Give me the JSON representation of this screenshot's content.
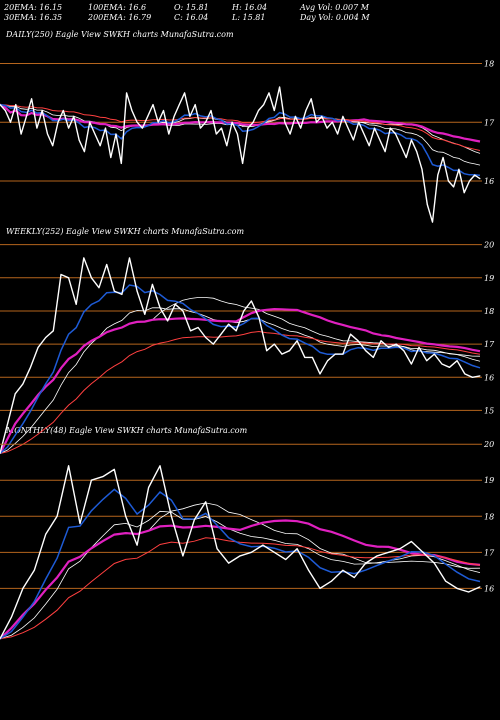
{
  "header": {
    "ema20": "20EMA: 16.15",
    "ema30": "30EMA: 16.35",
    "ema100": "100EMA: 16.6",
    "ema200": "200EMA: 16.79",
    "open": "O: 15.81",
    "close": "C: 16.04",
    "high": "H: 16.04",
    "low": "L: 15.81",
    "avg_vol": "Avg Vol: 0.007 M",
    "day_vol": "Day Vol: 0.004  M"
  },
  "colors": {
    "background": "#000000",
    "price": "#ffffff",
    "gridline": "#b5651d",
    "ema_short": "#1e5bd6",
    "ema_long": "#e020c0",
    "ema_mid": "#ff4040",
    "ema_aux": "#ffffff"
  },
  "chart_data": [
    {
      "type": "line",
      "title": "DAILY(250) Eagle  View  SWKH charts MunafaSutra.com",
      "yticks": [
        "18",
        "17",
        "16"
      ],
      "ylim": [
        15.2,
        18.4
      ],
      "series": [
        {
          "values": [
            17.3,
            17.2,
            17.0,
            17.3,
            16.8,
            17.1,
            17.4,
            16.9,
            17.2,
            16.8,
            16.6,
            17.0,
            17.2,
            16.9,
            17.1,
            16.7,
            16.5,
            17.0,
            16.8,
            16.6,
            16.9,
            16.4,
            16.8,
            16.3,
            17.5,
            17.2,
            17.0,
            16.9,
            17.1,
            17.3,
            17.0,
            17.2,
            16.8,
            17.1,
            17.3,
            17.5,
            17.1,
            17.3,
            16.9,
            17.0,
            17.2,
            16.8,
            16.9,
            16.6,
            17.0,
            16.8,
            16.3,
            16.9,
            17.0,
            17.2,
            17.3,
            17.5,
            17.2,
            17.6,
            17.0,
            16.8,
            17.1,
            16.9,
            17.2,
            17.4,
            17.0,
            17.1,
            16.9,
            17.0,
            16.8,
            17.1,
            16.9,
            16.7,
            17.0,
            16.8,
            16.6,
            16.9,
            16.7,
            16.5,
            16.9,
            16.8,
            16.6,
            16.4,
            16.7,
            16.5,
            16.2,
            15.6,
            15.3,
            16.1,
            16.4,
            16.0,
            15.9,
            16.2,
            15.8,
            16.0,
            16.1,
            16.04
          ]
        }
      ]
    },
    {
      "type": "line",
      "title": "WEEKLY(252) Eagle  View  SWKH charts MunafaSutra.com",
      "yticks": [
        "20",
        "19",
        "18",
        "17",
        "16",
        "15"
      ],
      "ylim": [
        14.5,
        20.2
      ],
      "series": [
        {
          "values": [
            13.7,
            14.6,
            15.5,
            15.8,
            16.3,
            16.9,
            17.2,
            17.4,
            19.1,
            19.0,
            18.2,
            19.6,
            19.0,
            18.7,
            19.4,
            18.6,
            18.5,
            19.6,
            18.6,
            17.9,
            18.8,
            18.1,
            17.7,
            18.2,
            18.0,
            17.4,
            17.5,
            17.2,
            17.0,
            17.3,
            17.6,
            17.4,
            18.0,
            18.3,
            17.8,
            16.8,
            17.0,
            16.7,
            16.8,
            17.1,
            16.6,
            16.6,
            16.1,
            16.5,
            16.7,
            16.7,
            17.3,
            17.1,
            16.8,
            16.6,
            17.1,
            16.9,
            17.0,
            16.8,
            16.4,
            16.9,
            16.5,
            16.7,
            16.4,
            16.3,
            16.5,
            16.1,
            16.0,
            16.04
          ]
        }
      ]
    },
    {
      "type": "line",
      "title": "MONTHLY(48) Eagle  View  SWKH charts MunafaSutra.com",
      "yticks": [
        "20",
        "19",
        "18",
        "17",
        "16"
      ],
      "ylim": [
        14.9,
        20.2
      ],
      "series": [
        {
          "values": [
            14.6,
            15.2,
            16.0,
            16.5,
            17.5,
            18.0,
            19.4,
            17.8,
            19.0,
            19.1,
            19.3,
            18.0,
            17.2,
            18.8,
            19.4,
            18.0,
            16.9,
            17.9,
            18.4,
            17.1,
            16.7,
            16.9,
            17.0,
            17.2,
            17.0,
            16.8,
            17.1,
            16.5,
            16.0,
            16.2,
            16.5,
            16.3,
            16.7,
            16.9,
            17.0,
            17.1,
            17.3,
            17.0,
            16.7,
            16.2,
            16.0,
            15.9,
            16.04
          ]
        }
      ]
    }
  ]
}
